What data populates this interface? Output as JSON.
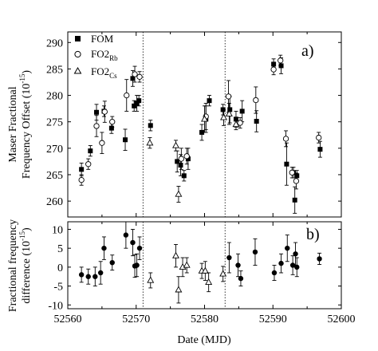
{
  "chart_data": [
    {
      "panel_label": "a)",
      "type": "scatter",
      "ylabel": "Maser Fractional Frequency Offset (10^-15)",
      "ylabel_lines": [
        "Maser Fractional",
        "Frequency Offset (10",
        "-15",
        ")"
      ],
      "xlim": [
        52560,
        52600
      ],
      "ylim": [
        257,
        292
      ],
      "yticks": [
        260,
        265,
        270,
        275,
        280,
        285,
        290
      ],
      "vlines": [
        52571,
        52583
      ],
      "legend": {
        "placement": "top-left",
        "entries": [
          {
            "text": "FOM",
            "sub": "",
            "marker": "filled-square"
          },
          {
            "text": "FO2",
            "sub": "Rb",
            "marker": "open-circle"
          },
          {
            "text": "FO2",
            "sub": "Cs",
            "marker": "open-triangle"
          }
        ]
      },
      "series": [
        {
          "name": "FOM",
          "marker": "filled-square",
          "points": [
            {
              "x": 52562.0,
              "y": 266.0,
              "e": 1.2
            },
            {
              "x": 52563.3,
              "y": 269.5,
              "e": 1.0
            },
            {
              "x": 52564.2,
              "y": 276.8,
              "e": 1.5
            },
            {
              "x": 52565.3,
              "y": 277.0,
              "e": 1.0
            },
            {
              "x": 52566.4,
              "y": 273.8,
              "e": 1.0
            },
            {
              "x": 52568.4,
              "y": 271.6,
              "e": 2.0
            },
            {
              "x": 52569.5,
              "y": 283.2,
              "e": 1.5
            },
            {
              "x": 52569.7,
              "y": 278.0,
              "e": 1.0
            },
            {
              "x": 52570.1,
              "y": 278.5,
              "e": 1.5
            },
            {
              "x": 52570.4,
              "y": 279.0,
              "e": 1.0
            },
            {
              "x": 52572.1,
              "y": 274.3,
              "e": 1.0
            },
            {
              "x": 52576.0,
              "y": 267.5,
              "e": 2.0
            },
            {
              "x": 52576.5,
              "y": 266.8,
              "e": 2.0
            },
            {
              "x": 52577.0,
              "y": 264.8,
              "e": 1.0
            },
            {
              "x": 52577.6,
              "y": 268.0,
              "e": 2.0
            },
            {
              "x": 52579.6,
              "y": 273.0,
              "e": 1.5
            },
            {
              "x": 52580.2,
              "y": 275.5,
              "e": 2.5
            },
            {
              "x": 52580.7,
              "y": 279.0,
              "e": 1.0
            },
            {
              "x": 52582.7,
              "y": 277.3,
              "e": 1.0
            },
            {
              "x": 52583.7,
              "y": 277.3,
              "e": 2.5
            },
            {
              "x": 52584.6,
              "y": 275.5,
              "e": 1.5
            },
            {
              "x": 52585.5,
              "y": 277.0,
              "e": 2.0
            },
            {
              "x": 52587.6,
              "y": 275.1,
              "e": 2.0
            },
            {
              "x": 52590.1,
              "y": 285.9,
              "e": 1.0
            },
            {
              "x": 52591.2,
              "y": 285.6,
              "e": 1.5
            },
            {
              "x": 52592.0,
              "y": 267.0,
              "e": 4.0
            },
            {
              "x": 52593.0,
              "y": 265.4,
              "e": 1.0
            },
            {
              "x": 52593.2,
              "y": 260.2,
              "e": 2.5
            },
            {
              "x": 52593.5,
              "y": 264.8,
              "e": 1.0
            },
            {
              "x": 52596.9,
              "y": 269.8,
              "e": 1.5
            }
          ]
        },
        {
          "name": "FO2Rb",
          "marker": "open-circle",
          "points": [
            {
              "x": 52562.0,
              "y": 264.0,
              "e": 1.0
            },
            {
              "x": 52563.0,
              "y": 267.0,
              "e": 1.0
            },
            {
              "x": 52564.2,
              "y": 274.2,
              "e": 2.0
            },
            {
              "x": 52565.0,
              "y": 271.0,
              "e": 2.0
            },
            {
              "x": 52565.4,
              "y": 276.9,
              "e": 2.0
            },
            {
              "x": 52566.5,
              "y": 275.0,
              "e": 1.0
            },
            {
              "x": 52568.6,
              "y": 280.0,
              "e": 3.0
            },
            {
              "x": 52569.8,
              "y": 284.0,
              "e": 1.5
            },
            {
              "x": 52570.5,
              "y": 283.5,
              "e": 1.0
            },
            {
              "x": 52576.6,
              "y": 268.0,
              "e": 2.0
            },
            {
              "x": 52577.4,
              "y": 268.5,
              "e": 1.5
            },
            {
              "x": 52580.2,
              "y": 276.0,
              "e": 2.5
            },
            {
              "x": 52583.5,
              "y": 279.8,
              "e": 3.0
            },
            {
              "x": 52585.2,
              "y": 274.8,
              "e": 1.0
            },
            {
              "x": 52587.5,
              "y": 279.1,
              "e": 2.5
            },
            {
              "x": 52590.1,
              "y": 284.9,
              "e": 1.0
            },
            {
              "x": 52591.1,
              "y": 286.6,
              "e": 1.0
            },
            {
              "x": 52591.9,
              "y": 271.8,
              "e": 1.5
            },
            {
              "x": 52592.8,
              "y": 265.4,
              "e": 1.0
            },
            {
              "x": 52593.4,
              "y": 263.8,
              "e": 1.5
            },
            {
              "x": 52596.7,
              "y": 272.0,
              "e": 1.0
            }
          ]
        },
        {
          "name": "FO2Cs",
          "marker": "open-triangle",
          "points": [
            {
              "x": 52572.0,
              "y": 271.0,
              "e": 1.0
            },
            {
              "x": 52575.8,
              "y": 270.5,
              "e": 1.0
            },
            {
              "x": 52576.2,
              "y": 261.3,
              "e": 1.5
            },
            {
              "x": 52580.0,
              "y": 275.5,
              "e": 2.5
            },
            {
              "x": 52582.8,
              "y": 275.8,
              "e": 1.5
            },
            {
              "x": 52583.6,
              "y": 276.5,
              "e": 2.0
            },
            {
              "x": 52584.6,
              "y": 274.5,
              "e": 1.0
            }
          ]
        }
      ]
    },
    {
      "panel_label": "b)",
      "type": "scatter",
      "ylabel": "Fractional frequency difference (10^-15)",
      "ylabel_lines": [
        "Fractional frequency",
        "difference (10",
        "-15",
        ")"
      ],
      "xlabel": "Date (MJD)",
      "xlim": [
        52560,
        52600
      ],
      "xticks": [
        52560,
        52570,
        52580,
        52590,
        52600
      ],
      "ylim": [
        -11,
        12
      ],
      "yticks": [
        -10,
        -5,
        0,
        5,
        10
      ],
      "vlines": [
        52571,
        52583
      ],
      "series": [
        {
          "name": "",
          "marker": "filled-circle",
          "points": [
            {
              "x": 52562.0,
              "y": -2.0,
              "e": 2.0
            },
            {
              "x": 52563.0,
              "y": -2.5,
              "e": 2.0
            },
            {
              "x": 52564.0,
              "y": -2.5,
              "e": 2.5
            },
            {
              "x": 52564.8,
              "y": -1.5,
              "e": 3.0
            },
            {
              "x": 52565.3,
              "y": 5.0,
              "e": 3.0
            },
            {
              "x": 52566.5,
              "y": 1.2,
              "e": 2.0
            },
            {
              "x": 52568.5,
              "y": 8.5,
              "e": 3.5
            },
            {
              "x": 52569.5,
              "y": 6.5,
              "e": 3.5
            },
            {
              "x": 52569.8,
              "y": 0.3,
              "e": 3.0
            },
            {
              "x": 52570.1,
              "y": 0.5,
              "e": 3.0
            },
            {
              "x": 52570.5,
              "y": 5.0,
              "e": 3.0
            },
            {
              "x": 52583.6,
              "y": 2.5,
              "e": 4.0
            },
            {
              "x": 52584.9,
              "y": 0.5,
              "e": 3.0
            },
            {
              "x": 52585.3,
              "y": -3.0,
              "e": 2.0
            },
            {
              "x": 52587.4,
              "y": 4.0,
              "e": 3.5
            },
            {
              "x": 52590.2,
              "y": -1.5,
              "e": 2.0
            },
            {
              "x": 52591.2,
              "y": 1.0,
              "e": 2.5
            },
            {
              "x": 52592.1,
              "y": 5.0,
              "e": 3.5
            },
            {
              "x": 52592.9,
              "y": 0.5,
              "e": 2.5
            },
            {
              "x": 52593.3,
              "y": 3.5,
              "e": 3.0
            },
            {
              "x": 52593.5,
              "y": 0.0,
              "e": 2.5
            },
            {
              "x": 52596.8,
              "y": 2.2,
              "e": 1.5
            }
          ]
        },
        {
          "name": "",
          "marker": "open-triangle",
          "points": [
            {
              "x": 52572.1,
              "y": -3.5,
              "e": 2.0
            },
            {
              "x": 52575.8,
              "y": 3.0,
              "e": 3.0
            },
            {
              "x": 52576.2,
              "y": -6.0,
              "e": 3.5
            },
            {
              "x": 52576.8,
              "y": 0.0,
              "e": 2.5
            },
            {
              "x": 52577.4,
              "y": 0.5,
              "e": 2.0
            },
            {
              "x": 52579.6,
              "y": -1.0,
              "e": 2.0
            },
            {
              "x": 52580.1,
              "y": -1.0,
              "e": 2.5
            },
            {
              "x": 52580.6,
              "y": -4.0,
              "e": 2.5
            },
            {
              "x": 52582.7,
              "y": -1.8,
              "e": 2.0
            }
          ]
        }
      ]
    }
  ]
}
